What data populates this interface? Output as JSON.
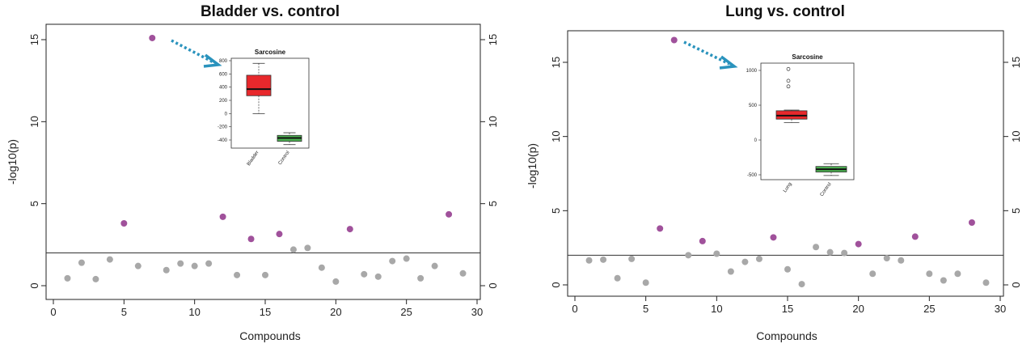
{
  "chart_data": [
    {
      "type": "scatter",
      "title": "Bladder vs. control",
      "xlabel": "Compounds",
      "ylabel": "-log10(p)",
      "xlim": [
        0,
        30
      ],
      "ylim": [
        0,
        15
      ],
      "xticks": [
        "0",
        "5",
        "10",
        "15",
        "20",
        "25",
        "30"
      ],
      "yticks": [
        "0",
        "5",
        "10",
        "15"
      ],
      "threshold": 2,
      "colors": {
        "significant": "#a0519b",
        "nonsignificant": "#a8a8a8",
        "arrow": "#2a93bd"
      },
      "points": [
        {
          "x": 1,
          "y": 0.45,
          "significant": false
        },
        {
          "x": 2,
          "y": 1.4,
          "significant": false
        },
        {
          "x": 3,
          "y": 0.4,
          "significant": false
        },
        {
          "x": 4,
          "y": 1.6,
          "significant": false
        },
        {
          "x": 5,
          "y": 3.8,
          "significant": true
        },
        {
          "x": 6,
          "y": 1.2,
          "significant": false
        },
        {
          "x": 7,
          "y": 15.1,
          "significant": true
        },
        {
          "x": 8,
          "y": 0.95,
          "significant": false
        },
        {
          "x": 9,
          "y": 1.35,
          "significant": false
        },
        {
          "x": 10,
          "y": 1.2,
          "significant": false
        },
        {
          "x": 11,
          "y": 1.35,
          "significant": false
        },
        {
          "x": 12,
          "y": 4.2,
          "significant": true
        },
        {
          "x": 13,
          "y": 0.65,
          "significant": false
        },
        {
          "x": 14,
          "y": 2.85,
          "significant": true
        },
        {
          "x": 15,
          "y": 0.65,
          "significant": false
        },
        {
          "x": 16,
          "y": 3.15,
          "significant": true
        },
        {
          "x": 17,
          "y": 2.2,
          "significant": false
        },
        {
          "x": 18,
          "y": 2.3,
          "significant": false
        },
        {
          "x": 19,
          "y": 1.1,
          "significant": false
        },
        {
          "x": 20,
          "y": 0.25,
          "significant": false
        },
        {
          "x": 21,
          "y": 3.45,
          "significant": true
        },
        {
          "x": 22,
          "y": 0.7,
          "significant": false
        },
        {
          "x": 23,
          "y": 0.55,
          "significant": false
        },
        {
          "x": 24,
          "y": 1.5,
          "significant": false
        },
        {
          "x": 25,
          "y": 1.65,
          "significant": false
        },
        {
          "x": 26,
          "y": 0.45,
          "significant": false
        },
        {
          "x": 27,
          "y": 1.2,
          "significant": false
        },
        {
          "x": 28,
          "y": 4.35,
          "significant": true
        },
        {
          "x": 29,
          "y": 0.75,
          "significant": false
        }
      ],
      "inset": {
        "type": "boxplot",
        "title": "Sarcosine",
        "categories": [
          "Bladder",
          "Control"
        ],
        "yticks": [
          "-400",
          "-200",
          "0",
          "200",
          "400",
          "600",
          "800"
        ],
        "ylim": [
          -500,
          800
        ],
        "boxes": [
          {
            "name": "Bladder",
            "color": "#e8282c",
            "min": 0,
            "q1": 270,
            "median": 370,
            "q3": 580,
            "max": 760,
            "outliers": []
          },
          {
            "name": "Control",
            "color": "#4caf50",
            "min": -470,
            "q1": -420,
            "median": -370,
            "q3": -330,
            "max": -290,
            "outliers": []
          }
        ]
      }
    },
    {
      "type": "scatter",
      "title": "Lung vs. control",
      "xlabel": "Compounds",
      "ylabel": "-log10(p)",
      "xlim": [
        0,
        30
      ],
      "ylim": [
        0,
        16
      ],
      "xticks": [
        "0",
        "5",
        "10",
        "15",
        "20",
        "25",
        "30"
      ],
      "yticks": [
        "0",
        "5",
        "10",
        "15"
      ],
      "threshold": 2,
      "colors": {
        "significant": "#a0519b",
        "nonsignificant": "#a8a8a8",
        "arrow": "#2a93bd"
      },
      "points": [
        {
          "x": 1,
          "y": 1.65,
          "significant": false
        },
        {
          "x": 2,
          "y": 1.7,
          "significant": false
        },
        {
          "x": 3,
          "y": 0.45,
          "significant": false
        },
        {
          "x": 4,
          "y": 1.75,
          "significant": false
        },
        {
          "x": 5,
          "y": 0.15,
          "significant": false
        },
        {
          "x": 6,
          "y": 3.8,
          "significant": true
        },
        {
          "x": 7,
          "y": 16.5,
          "significant": true
        },
        {
          "x": 8,
          "y": 2.0,
          "significant": false
        },
        {
          "x": 9,
          "y": 2.95,
          "significant": true
        },
        {
          "x": 10,
          "y": 2.1,
          "significant": false
        },
        {
          "x": 11,
          "y": 0.9,
          "significant": false
        },
        {
          "x": 12,
          "y": 1.55,
          "significant": false
        },
        {
          "x": 13,
          "y": 1.75,
          "significant": false
        },
        {
          "x": 14,
          "y": 3.2,
          "significant": true
        },
        {
          "x": 15,
          "y": 1.05,
          "significant": false
        },
        {
          "x": 16,
          "y": 0.05,
          "significant": false
        },
        {
          "x": 17,
          "y": 2.55,
          "significant": false
        },
        {
          "x": 18,
          "y": 2.2,
          "significant": false
        },
        {
          "x": 19,
          "y": 2.15,
          "significant": false
        },
        {
          "x": 20,
          "y": 2.75,
          "significant": true
        },
        {
          "x": 21,
          "y": 0.75,
          "significant": false
        },
        {
          "x": 22,
          "y": 1.8,
          "significant": false
        },
        {
          "x": 23,
          "y": 1.65,
          "significant": false
        },
        {
          "x": 24,
          "y": 3.25,
          "significant": true
        },
        {
          "x": 25,
          "y": 0.75,
          "significant": false
        },
        {
          "x": 26,
          "y": 0.3,
          "significant": false
        },
        {
          "x": 27,
          "y": 0.75,
          "significant": false
        },
        {
          "x": 28,
          "y": 4.2,
          "significant": true
        },
        {
          "x": 29,
          "y": 0.15,
          "significant": false
        }
      ],
      "inset": {
        "type": "boxplot",
        "title": "Sarcosine",
        "categories": [
          "Lung",
          "Control"
        ],
        "yticks": [
          "-500",
          "0",
          "500",
          "1000"
        ],
        "ylim": [
          -600,
          1100
        ],
        "boxes": [
          {
            "name": "Lung",
            "color": "#e8282c",
            "min": 250,
            "q1": 300,
            "median": 350,
            "q3": 420,
            "max": 430,
            "outliers": [
              770,
              850,
              1020
            ]
          },
          {
            "name": "Control",
            "color": "#4caf50",
            "min": -510,
            "q1": -460,
            "median": -420,
            "q3": -380,
            "max": -340,
            "outliers": []
          }
        ]
      }
    }
  ]
}
